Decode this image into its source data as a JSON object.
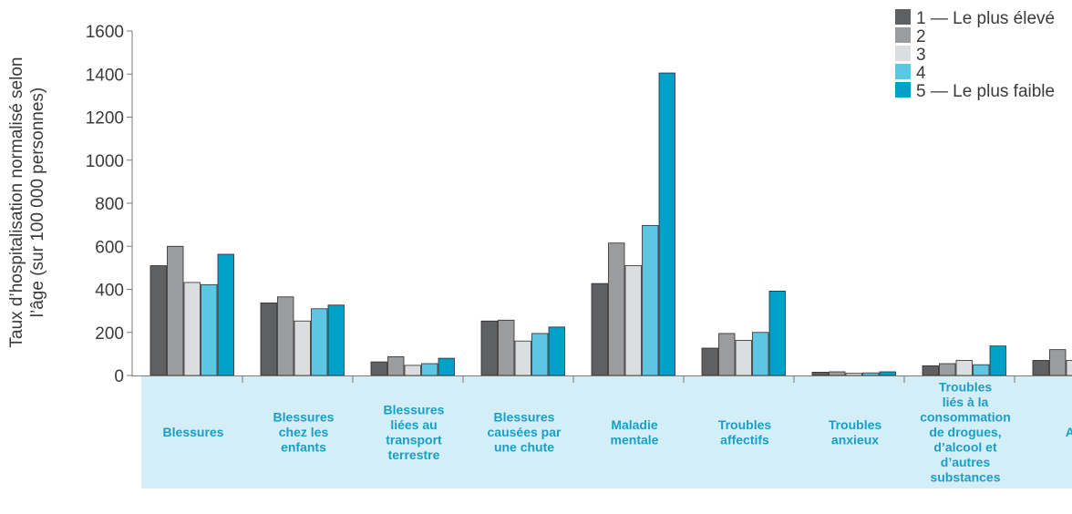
{
  "chart_data": {
    "type": "bar",
    "ylabel": "Taux d’hospitalisation normalisé selon l’âge (sur 100 000 personnes)",
    "ylabel_lines": [
      "Taux d’hospitalisation normalisé selon",
      "l’âge (sur 100 000 personnes)"
    ],
    "ylim": [
      0,
      1600
    ],
    "yticks": [
      0,
      200,
      400,
      600,
      800,
      1000,
      1200,
      1400,
      1600
    ],
    "grid": false,
    "legend_position": "top-right",
    "categories": [
      "Blessures",
      "Blessures chez les enfants",
      "Blessures liées au transport terrestre",
      "Blessures causées par une chute",
      "Maladie mentale",
      "Troubles affectifs",
      "Troubles anxieux",
      "Troubles liés à la consommation de drogues, d’alcool et d’autres substances",
      "Ast"
    ],
    "category_label_lines": [
      [
        "Blessures"
      ],
      [
        "Blessures",
        "chez les",
        "enfants"
      ],
      [
        "Blessures",
        "liées au",
        "transport",
        "terrestre"
      ],
      [
        "Blessures",
        "causées par",
        "une chute"
      ],
      [
        "Maladie",
        "mentale"
      ],
      [
        "Troubles",
        "affectifs"
      ],
      [
        "Troubles",
        "anxieux"
      ],
      [
        "Troubles",
        "liés à la",
        "consommation",
        "de drogues,",
        "d’alcool et",
        "d’autres",
        "substances"
      ],
      [
        "Ast"
      ]
    ],
    "series": [
      {
        "name": "1 — Le plus élevé",
        "color": "#5f6062",
        "values": [
          510,
          337,
          63,
          253,
          427,
          127,
          15,
          45,
          70
        ]
      },
      {
        "name": "2",
        "color": "#9b9c9e",
        "values": [
          600,
          365,
          87,
          257,
          615,
          195,
          17,
          55,
          120
        ]
      },
      {
        "name": "3",
        "color": "#dcdddf",
        "values": [
          432,
          253,
          47,
          160,
          510,
          163,
          10,
          70,
          70
        ]
      },
      {
        "name": "4",
        "color": "#5cc6e3",
        "values": [
          422,
          310,
          55,
          195,
          697,
          200,
          12,
          50,
          0
        ]
      },
      {
        "name": "5 — Le plus faible",
        "color": "#00a1c9",
        "values": [
          563,
          327,
          80,
          225,
          1405,
          392,
          17,
          137,
          0
        ]
      }
    ]
  },
  "colors": {
    "label_band": "#d3eef7",
    "category_text": "#1a9ec6",
    "axis": "#7a7a7a",
    "text": "#3a3a3a"
  }
}
